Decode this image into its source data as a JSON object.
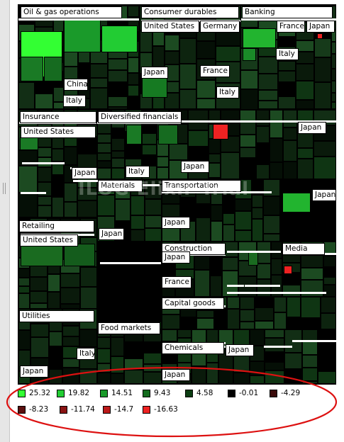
{
  "watermark": "ILOG Elixir Trial",
  "groups": [
    {
      "label": "Oil & gas operations"
    },
    {
      "label": "Consumer durables"
    },
    {
      "label": "Banking"
    },
    {
      "label": "Insurance"
    },
    {
      "label": "Diversified financials"
    },
    {
      "label": "Materials"
    },
    {
      "label": "Transportation"
    },
    {
      "label": "Retailing"
    },
    {
      "label": "Construction"
    },
    {
      "label": "Media"
    },
    {
      "label": "Capital goods"
    },
    {
      "label": "Utilities"
    },
    {
      "label": "Food markets"
    },
    {
      "label": "Chemicals"
    }
  ],
  "sub_labels": [
    {
      "label": "China"
    },
    {
      "label": "Italy"
    },
    {
      "label": "United States"
    },
    {
      "label": "Germany"
    },
    {
      "label": "Japan"
    },
    {
      "label": "France"
    },
    {
      "label": "Italy"
    },
    {
      "label": "France"
    },
    {
      "label": "Japan"
    },
    {
      "label": "Italy"
    },
    {
      "label": "United States"
    },
    {
      "label": "Japan"
    },
    {
      "label": "Italy"
    },
    {
      "label": "Japan"
    },
    {
      "label": "Japan"
    },
    {
      "label": "Japan"
    },
    {
      "label": "Japan"
    },
    {
      "label": "Japan"
    },
    {
      "label": "United States"
    },
    {
      "label": "Japan"
    },
    {
      "label": "France"
    },
    {
      "label": "Italy"
    },
    {
      "label": "Japan"
    },
    {
      "label": "Japan"
    },
    {
      "label": "Japan"
    }
  ],
  "legend": [
    {
      "value": "25.32",
      "color": "#33ff33"
    },
    {
      "value": "19.82",
      "color": "#22cc33"
    },
    {
      "value": "14.51",
      "color": "#1a9a2a"
    },
    {
      "value": "9.43",
      "color": "#136b1e"
    },
    {
      "value": "4.58",
      "color": "#0b3d12"
    },
    {
      "value": "-0.01",
      "color": "#000000"
    },
    {
      "value": "-4.29",
      "color": "#3a0a0a"
    },
    {
      "value": "-8.23",
      "color": "#5c0f0f"
    },
    {
      "value": "-11.74",
      "color": "#8a1414"
    },
    {
      "value": "-14.7",
      "color": "#bb1a1a"
    },
    {
      "value": "-16.63",
      "color": "#ee2222"
    }
  ],
  "annotation_color": "#dd1111"
}
